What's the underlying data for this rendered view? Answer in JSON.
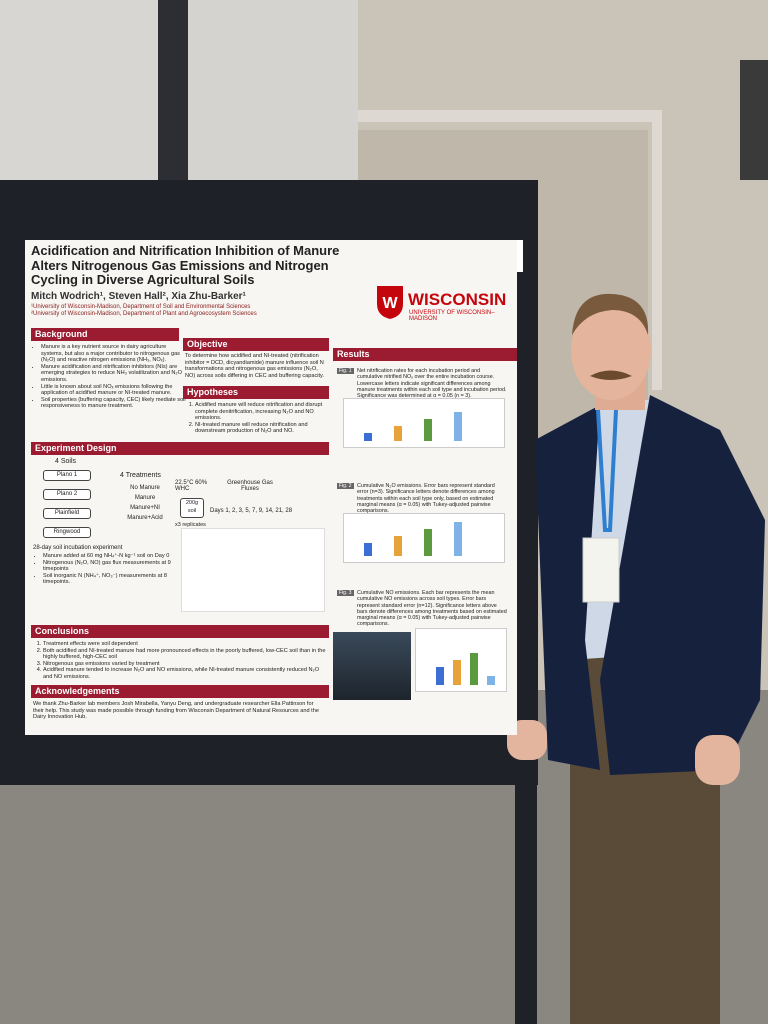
{
  "poster": {
    "title": "Acidification and Nitrification Inhibition of Manure Alters Nitrogenous Gas Emissions and Nitrogen Cycling in Diverse Agricultural Soils",
    "authors": "Mitch Wodrich¹, Steven Hall², Xia Zhu-Barker¹",
    "affiliations": [
      "¹University of Wisconsin-Madison, Department of Soil and Environmental Sciences",
      "²University of Wisconsin-Madison, Department of Plant and Agroecosystem Sciences"
    ],
    "logo": {
      "name": "WISCONSIN",
      "sub": "UNIVERSITY OF WISCONSIN–MADISON"
    },
    "background": {
      "heading": "Background",
      "items": [
        "Manure is a key nutrient source in dairy agriculture systems, but also a major contributor to nitrogenous gas (N₂O) and reactive nitrogen emissions (NH₃, NOₓ).",
        "Manure acidification and nitrification inhibitors (NIs) are emerging strategies to reduce NH₃ volatilization and N₂O emissions.",
        "Little is known about soil NOₓ emissions following the application of acidified manure or NI-treated manure.",
        "Soil properties (buffering capacity, CEC) likely mediate soil responsiveness to manure treatment."
      ]
    },
    "objective": {
      "heading": "Objective",
      "text": "To determine how acidified and NI-treated (nitrification inhibitor = DCD, dicyandiamide) manure influence soil N transformations and nitrogenous gas emissions (N₂O, NO) across soils differing in CEC and buffering capacity."
    },
    "hypotheses": {
      "heading": "Hypotheses",
      "items": [
        "Acidified manure will reduce nitrification and disrupt complete denitrification, increasing N₂O and NO emissions.",
        "NI-treated manure will reduce nitrification and downstream production of N₂O and NO."
      ]
    },
    "design": {
      "heading": "Experiment Design",
      "soils_label": "4 Soils",
      "soils": [
        "Plano 1",
        "Plano 2",
        "Plainfield",
        "Ringwood"
      ],
      "treatments_label": "4 Treatments",
      "treatments": [
        "No Manure",
        "Manure",
        "Manure+NI",
        "Manure+Acid"
      ],
      "conditions": "22.5°C 60% WHC",
      "jar": "200g soil",
      "replicates": "x3 replicates",
      "greenhouse": "Greenhouse Gas Fluxes",
      "days": "Days 1, 2, 3, 5, 7, 9, 14, 21, 28",
      "incubation": "28-day soil incubation experiment",
      "items": [
        "Manure added at 60 mg NH₄⁺-N kg⁻¹ soil on Day 0",
        "Nitrogenous (N₂O, NO) gas flux measurements at 9 timepoints",
        "Soil inorganic N (NH₄⁺, NO₃⁻) measurements at 8 timepoints."
      ]
    },
    "conclusions": {
      "heading": "Conclusions",
      "items": [
        "Treatment effects were soil dependent",
        "Both acidified and NI-treated manure had more pronounced effects in the poorly buffered, low-CEC soil than in the highly buffered, high-CEC soil",
        "Nitrogenous gas emissions varied by treatment",
        "Acidified manure tended to increase N₂O and NO emissions, while NI-treated manure consistently reduced N₂O and NO emissions."
      ]
    },
    "acknowledgements": {
      "heading": "Acknowledgements",
      "text": "We thank Zhu-Barker lab members Josh Mirabella, Yanyu Deng, and undergraduate researcher Ella Pattinson for their help. This study was made possible through funding from Wisconsin Department of Natural Resources and the Dairy Innovation Hub."
    },
    "results": {
      "heading": "Results",
      "figures": [
        {
          "label": "Fig. 1",
          "caption": "Net nitrification rates for each incubation period and cumulative nitrified NOₓ over the entire incubation course. Lowercase letters indicate significant differences among manure treatments within each soil type and incubation period. Significance was determined at α = 0.05 (n = 3)."
        },
        {
          "label": "Fig. 2",
          "caption": "Cumulative N₂O emissions. Error bars represent standard error (n=3). Significance letters denote differences among treatments within each soil type only, based on estimated marginal means (α = 0.05) with Tukey-adjusted pairwise comparisons."
        },
        {
          "label": "Fig. 3",
          "caption": "Cumulative NO emissions. Each bar represents the mean cumulative NO emissions across soil types. Error bars represent standard error (n=12). Significance letters above bars denote differences among treatments based on estimated marginal means (α = 0.05) with Tukey-adjusted pairwise comparisons."
        }
      ]
    }
  }
}
